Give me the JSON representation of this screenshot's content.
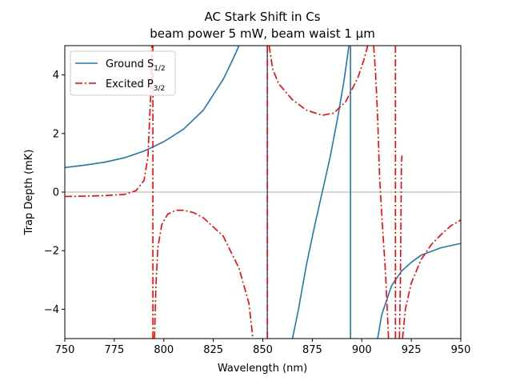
{
  "chart_data": {
    "type": "line",
    "title": "AC Stark Shift in Cs",
    "subtitle": "beam power 5 mW, beam waist 1 μm",
    "xlabel": "Wavelength (nm)",
    "ylabel": "Trap Depth (mK)",
    "xlim": [
      750,
      950
    ],
    "ylim": [
      -5,
      5
    ],
    "xticks": [
      750,
      775,
      800,
      825,
      850,
      875,
      900,
      925,
      950
    ],
    "yticks": [
      -4,
      -2,
      0,
      2,
      4
    ],
    "grid": false,
    "zero_line": true,
    "legend": {
      "position": "top-left",
      "entries": [
        {
          "label": "Ground S",
          "sub": "1/2",
          "series": 0
        },
        {
          "label": "Excited P",
          "sub": "3/2",
          "series": 1
        }
      ]
    },
    "colors": {
      "ground": "#1f77b4",
      "excited": "#ff0000",
      "zero_line": "#bfbfbf"
    },
    "series": [
      {
        "name": "Ground S1/2",
        "style": "solid",
        "segments": [
          [
            [
              750,
              0.84
            ],
            [
              760,
              0.92
            ],
            [
              770,
              1.02
            ],
            [
              780,
              1.17
            ],
            [
              790,
              1.4
            ],
            [
              800,
              1.72
            ],
            [
              810,
              2.15
            ],
            [
              820,
              2.8
            ],
            [
              830,
              3.85
            ],
            [
              835,
              4.55
            ],
            [
              838,
              5.0
            ]
          ],
          [
            [
              852.3,
              5.0
            ],
            [
              852.3,
              -5.0
            ]
          ],
          [
            [
              865,
              -5.0
            ],
            [
              868,
              -4.0
            ],
            [
              872,
              -2.5
            ],
            [
              876,
              -1.2
            ],
            [
              880,
              0.0
            ],
            [
              884,
              1.2
            ],
            [
              888,
              2.6
            ],
            [
              891,
              3.8
            ],
            [
              893.5,
              5.0
            ]
          ],
          [
            [
              894.3,
              5.0
            ],
            [
              894.3,
              -5.0
            ]
          ],
          [
            [
              908,
              -5.0
            ],
            [
              910,
              -4.2
            ],
            [
              915,
              -3.2
            ],
            [
              920,
              -2.7
            ],
            [
              925,
              -2.4
            ],
            [
              930,
              -2.15
            ],
            [
              940,
              -1.9
            ],
            [
              950,
              -1.75
            ]
          ]
        ]
      },
      {
        "name": "Excited P3/2",
        "style": "dashdot",
        "segments": [
          [
            [
              750,
              -0.15
            ],
            [
              760,
              -0.14
            ],
            [
              770,
              -0.12
            ],
            [
              780,
              -0.08
            ],
            [
              786,
              0.05
            ],
            [
              790,
              0.4
            ],
            [
              792,
              1.2
            ],
            [
              793.5,
              3.5
            ],
            [
              794,
              5.0
            ]
          ],
          [
            [
              794.5,
              5.0
            ],
            [
              794.5,
              -5.0
            ]
          ],
          [
            [
              795.3,
              -5.0
            ],
            [
              796,
              -3.2
            ],
            [
              797,
              -1.9
            ],
            [
              799,
              -1.1
            ],
            [
              802,
              -0.75
            ],
            [
              806,
              -0.62
            ],
            [
              810,
              -0.62
            ],
            [
              815,
              -0.7
            ],
            [
              820,
              -0.88
            ],
            [
              830,
              -1.5
            ],
            [
              838,
              -2.6
            ],
            [
              843,
              -3.8
            ],
            [
              845,
              -5.0
            ]
          ],
          [
            [
              852.3,
              5.0
            ],
            [
              852.3,
              -5.0
            ]
          ],
          [
            [
              853.2,
              5.0
            ],
            [
              855,
              4.2
            ],
            [
              858,
              3.7
            ],
            [
              865,
              3.15
            ],
            [
              872,
              2.8
            ],
            [
              880,
              2.62
            ],
            [
              886,
              2.7
            ],
            [
              892,
              3.1
            ],
            [
              898,
              3.9
            ],
            [
              901,
              4.5
            ],
            [
              903,
              5.0
            ]
          ],
          [
            [
              906,
              5.0
            ],
            [
              907,
              4.0
            ],
            [
              908,
              2.5
            ],
            [
              909,
              0.5
            ],
            [
              910.3,
              -1.0
            ],
            [
              912,
              -2.8
            ],
            [
              913.5,
              -5.0
            ]
          ],
          [
            [
              917,
              5.0
            ],
            [
              917,
              -5.0
            ]
          ],
          [
            [
              919,
              -5.0
            ],
            [
              919.5,
              -3.0
            ],
            [
              920,
              1.0
            ],
            [
              920.3,
              1.25
            ]
          ],
          [
            [
              920.6,
              -5.0
            ],
            [
              922,
              -4.0
            ],
            [
              925,
              -3.1
            ],
            [
              930,
              -2.3
            ],
            [
              935,
              -1.8
            ],
            [
              940,
              -1.45
            ],
            [
              945,
              -1.15
            ],
            [
              950,
              -0.95
            ]
          ]
        ]
      }
    ]
  }
}
